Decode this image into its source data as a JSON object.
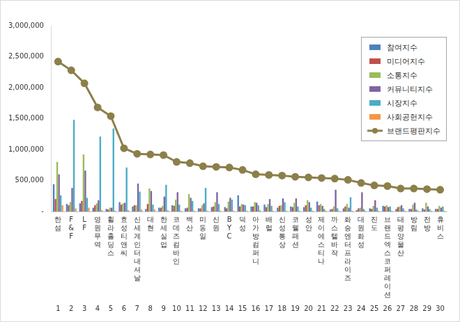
{
  "chart_data": {
    "type": "bar",
    "categories": [
      "한섬",
      "F&F",
      "LF",
      "영원무역",
      "휠라홀딩스",
      "효성티앤씨",
      "신세계인터내셔날",
      "대현",
      "한세실업",
      "코데즈컴바인",
      "백산",
      "미동일",
      "신원",
      "BYC",
      "덕성",
      "아가방컴퍼니",
      "배럴",
      "신성통상",
      "코웰패션",
      "성안",
      "제이에스티나",
      "까스텔바작",
      "화승엔터프라이즈",
      "대원화성",
      "진도",
      "브랜드엑스코퍼레이션",
      "태평양물산",
      "방림",
      "전방",
      "휴비스"
    ],
    "ranks": [
      1,
      2,
      3,
      4,
      5,
      6,
      7,
      8,
      9,
      10,
      11,
      12,
      13,
      14,
      15,
      16,
      17,
      18,
      19,
      20,
      21,
      22,
      23,
      24,
      25,
      26,
      27,
      28,
      29,
      30
    ],
    "series": [
      {
        "name": "참여지수",
        "color": "#4f81bd",
        "values": [
          440000,
          120000,
          130000,
          60000,
          40000,
          150000,
          80000,
          40000,
          60000,
          100000,
          50000,
          50000,
          70000,
          70000,
          260000,
          80000,
          110000,
          60000,
          80000,
          70000,
          160000,
          30000,
          50000,
          20000,
          50000,
          90000,
          40000,
          40000,
          50000,
          40000
        ]
      },
      {
        "name": "미디어지수",
        "color": "#c0504d",
        "values": [
          200000,
          100000,
          170000,
          100000,
          30000,
          110000,
          100000,
          120000,
          60000,
          90000,
          60000,
          50000,
          80000,
          50000,
          80000,
          80000,
          70000,
          90000,
          70000,
          100000,
          100000,
          40000,
          80000,
          50000,
          40000,
          80000,
          70000,
          40000,
          30000,
          40000
        ]
      },
      {
        "name": "소통지수",
        "color": "#9bbb59",
        "values": [
          800000,
          150000,
          920000,
          130000,
          60000,
          130000,
          100000,
          370000,
          90000,
          190000,
          280000,
          100000,
          150000,
          160000,
          120000,
          150000,
          120000,
          100000,
          140000,
          180000,
          120000,
          80000,
          120000,
          60000,
          90000,
          100000,
          80000,
          110000,
          140000,
          90000
        ]
      },
      {
        "name": "커뮤니티지수",
        "color": "#8064a2",
        "values": [
          600000,
          380000,
          660000,
          180000,
          60000,
          140000,
          450000,
          330000,
          240000,
          310000,
          220000,
          130000,
          310000,
          220000,
          110000,
          140000,
          200000,
          210000,
          210000,
          150000,
          90000,
          350000,
          60000,
          310000,
          180000,
          70000,
          100000,
          140000,
          80000,
          60000
        ]
      },
      {
        "name": "시장지수",
        "color": "#4bacc6",
        "values": [
          260000,
          1480000,
          220000,
          1210000,
          1340000,
          710000,
          320000,
          110000,
          430000,
          110000,
          170000,
          380000,
          120000,
          190000,
          100000,
          100000,
          90000,
          150000,
          80000,
          60000,
          40000,
          50000,
          230000,
          40000,
          60000,
          80000,
          50000,
          30000,
          40000,
          80000
        ]
      },
      {
        "name": "사회공헌지수",
        "color": "#f79646",
        "values": [
          100000,
          50000,
          60000,
          20000,
          10000,
          20000,
          30000,
          30000,
          20000,
          10000,
          10000,
          10000,
          10000,
          10000,
          10000,
          20000,
          10000,
          10000,
          10000,
          10000,
          10000,
          10000,
          10000,
          10000,
          10000,
          10000,
          10000,
          10000,
          10000,
          10000
        ]
      },
      {
        "name": "브랜드평판지수",
        "color": "#8c7f4a",
        "type": "line",
        "marker": "circle",
        "values": [
          2420000,
          2280000,
          2070000,
          1680000,
          1540000,
          1020000,
          930000,
          920000,
          910000,
          800000,
          780000,
          730000,
          720000,
          710000,
          670000,
          600000,
          590000,
          580000,
          560000,
          550000,
          540000,
          530000,
          510000,
          460000,
          420000,
          410000,
          370000,
          370000,
          360000,
          350000
        ]
      }
    ],
    "ylim": [
      0,
      3000000
    ],
    "yticks": [
      {
        "value": 0,
        "label": "-"
      },
      {
        "value": 500000,
        "label": "500,000"
      },
      {
        "value": 1000000,
        "label": "1,000,000"
      },
      {
        "value": 1500000,
        "label": "1,500,000"
      },
      {
        "value": 2000000,
        "label": "2,000,000"
      },
      {
        "value": 2500000,
        "label": "2,500,000"
      },
      {
        "value": 3000000,
        "label": "3,000,000"
      }
    ],
    "grid": false,
    "legend": "upper right"
  }
}
